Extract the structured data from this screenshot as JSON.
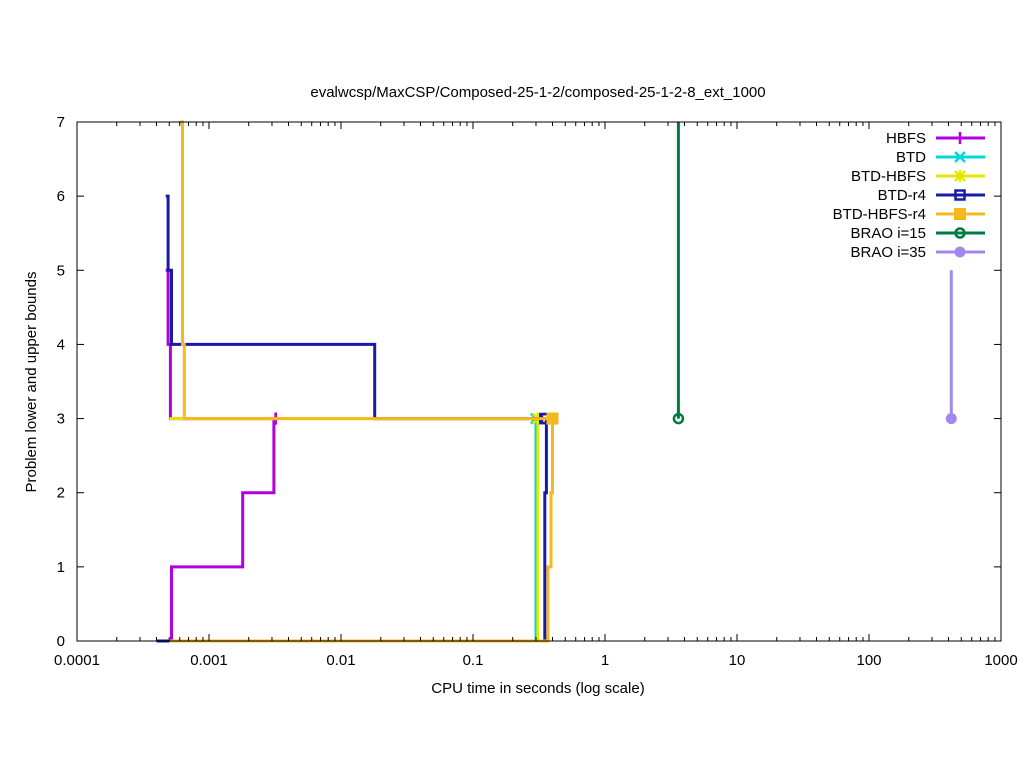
{
  "chart_data": {
    "type": "line",
    "title": "evalwcsp/MaxCSP/Composed-25-1-2/composed-25-1-2-8_ext_1000",
    "xlabel": "CPU time in seconds (log scale)",
    "ylabel": "Problem lower and upper bounds",
    "xscale": "log",
    "xlim": [
      0.0001,
      1000
    ],
    "ylim": [
      0,
      7
    ],
    "x_ticks": [
      0.0001,
      0.001,
      0.01,
      0.1,
      1,
      10,
      100,
      1000
    ],
    "x_tick_labels": [
      "0.0001",
      "0.001",
      "0.01",
      "0.1",
      "1",
      "10",
      "100",
      "1000"
    ],
    "y_ticks": [
      0,
      1,
      2,
      3,
      4,
      5,
      6,
      7
    ],
    "y_tick_labels": [
      "0",
      "1",
      "2",
      "3",
      "4",
      "5",
      "6",
      "7"
    ],
    "legend_position": "top-right",
    "grid": false,
    "series": [
      {
        "name": "HBFS",
        "color": "#b000e0",
        "marker": "plus",
        "upper": [
          [
            0.00047,
            5
          ],
          [
            0.00049,
            4
          ],
          [
            0.00051,
            3
          ],
          [
            0.0032,
            3
          ]
        ],
        "lower": [
          [
            0.00051,
            0
          ],
          [
            0.00052,
            1
          ],
          [
            0.0018,
            2
          ],
          [
            0.0031,
            3
          ],
          [
            0.0032,
            3
          ]
        ]
      },
      {
        "name": "BTD",
        "color": "#00d8d8",
        "marker": "x",
        "upper": [
          [
            0.29,
            3
          ],
          [
            0.3,
            3
          ]
        ],
        "lower": [
          [
            0.3,
            0
          ],
          [
            0.3,
            3
          ]
        ]
      },
      {
        "name": "BTD-HBFS",
        "color": "#e6e600",
        "marker": "star",
        "upper": [
          [
            0.0005,
            3
          ],
          [
            0.31,
            3
          ]
        ],
        "lower": [
          [
            0.31,
            0
          ],
          [
            0.31,
            3
          ]
        ]
      },
      {
        "name": "BTD-r4",
        "color": "#1a1aa8",
        "marker": "square-open",
        "upper": [
          [
            0.00047,
            6
          ],
          [
            0.00049,
            5
          ],
          [
            0.00052,
            4
          ],
          [
            0.018,
            3
          ],
          [
            0.35,
            3
          ]
        ],
        "lower": [
          [
            0.0004,
            0
          ],
          [
            0.34,
            0
          ],
          [
            0.35,
            2
          ],
          [
            0.36,
            3
          ]
        ]
      },
      {
        "name": "BTD-HBFS-r4",
        "color": "#f5b81e",
        "marker": "square-filled",
        "upper": [
          [
            0.0006,
            7
          ],
          [
            0.00063,
            4
          ],
          [
            0.00065,
            3
          ],
          [
            0.4,
            3
          ]
        ],
        "lower": [
          [
            0.0005,
            0
          ],
          [
            0.36,
            0
          ],
          [
            0.37,
            1
          ],
          [
            0.39,
            2
          ],
          [
            0.4,
            3
          ]
        ]
      },
      {
        "name": "BRAO i=15",
        "color": "#007a40",
        "marker": "circle-open",
        "upper": [
          [
            3.6,
            7
          ],
          [
            3.6,
            3
          ]
        ],
        "lower": []
      },
      {
        "name": "BRAO i=35",
        "color": "#a088f0",
        "marker": "circle-filled",
        "upper": [
          [
            420,
            5
          ],
          [
            420,
            3
          ]
        ],
        "lower": []
      }
    ]
  }
}
